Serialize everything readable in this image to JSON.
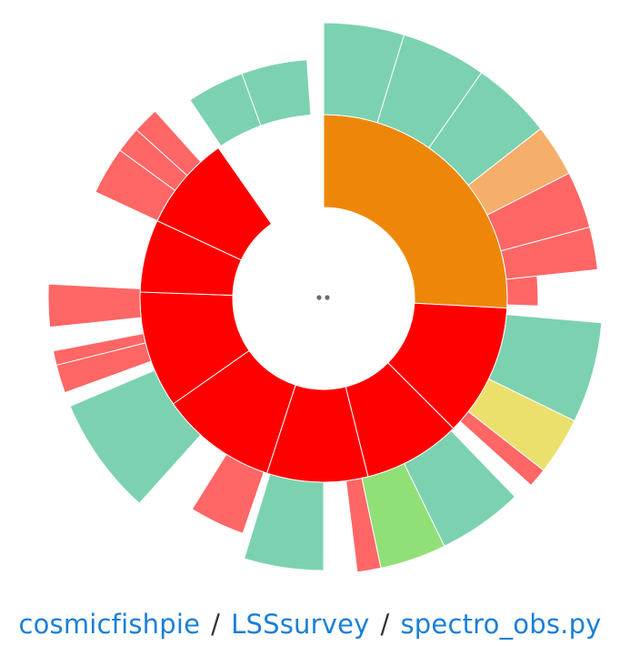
{
  "breadcrumb": {
    "items": [
      "cosmicfishpie",
      "LSSsurvey",
      "spectro_obs.py"
    ],
    "separator": "/"
  },
  "center_label": "..",
  "colors": {
    "dark_orange": "#ee8709",
    "red": "#ff0000",
    "light_red": "#ff6666",
    "green": "#7cd2b0",
    "light_orange": "#f6ae6b",
    "yellow": "#ece06c",
    "light_green": "#90e077"
  },
  "chart_data": {
    "type": "sunburst",
    "title": "",
    "rings": [
      {
        "level": 1,
        "segments": [
          {
            "start": 0,
            "end": 93,
            "color": "dark_orange"
          },
          {
            "start": 93,
            "end": 135,
            "color": "red"
          },
          {
            "start": 135,
            "end": 166,
            "color": "red"
          },
          {
            "start": 166,
            "end": 198,
            "color": "red"
          },
          {
            "start": 198,
            "end": 235,
            "color": "red"
          },
          {
            "start": 235,
            "end": 272,
            "color": "red"
          },
          {
            "start": 272,
            "end": 295,
            "color": "red"
          },
          {
            "start": 295,
            "end": 325,
            "color": "red"
          }
        ]
      },
      {
        "level": 2,
        "segments": [
          {
            "start": 73,
            "end": 82,
            "color": "light_red",
            "outer": 1.17
          },
          {
            "start": 82,
            "end": 92,
            "color": "light_red",
            "outer": 1.17
          },
          {
            "start": 95,
            "end": 116,
            "color": "green",
            "outer": 1.52
          },
          {
            "start": 116,
            "end": 128,
            "color": "yellow",
            "outer": 1.52
          },
          {
            "start": 128,
            "end": 132,
            "color": "light_red",
            "outer": 1.52
          },
          {
            "start": 136,
            "end": 154,
            "color": "green",
            "outer": 1.5
          },
          {
            "start": 154,
            "end": 168,
            "color": "light_green",
            "outer": 1.5
          },
          {
            "start": 168,
            "end": 173,
            "color": "light_red",
            "outer": 1.5
          },
          {
            "start": 180,
            "end": 197,
            "color": "green",
            "outer": 1.48
          },
          {
            "start": 199,
            "end": 212,
            "color": "light_red",
            "outer": 1.35
          },
          {
            "start": 222,
            "end": 247,
            "color": "green",
            "outer": 1.5
          },
          {
            "start": 250,
            "end": 256,
            "color": "light_red",
            "outer": 1.5
          },
          {
            "start": 256,
            "end": 259,
            "color": "light_red",
            "outer": 1.5
          },
          {
            "start": 264,
            "end": 273,
            "color": "light_red",
            "outer": 1.5
          },
          {
            "start": 295,
            "end": 306,
            "color": "light_red",
            "outer": 1.37
          },
          {
            "start": 306,
            "end": 312,
            "color": "light_red",
            "outer": 1.37
          },
          {
            "start": 312,
            "end": 318,
            "color": "light_red",
            "outer": 1.37
          },
          {
            "start": 326,
            "end": 340,
            "color": "green",
            "outer": 1.3
          },
          {
            "start": 340,
            "end": 356,
            "color": "green",
            "outer": 1.3
          }
        ]
      },
      {
        "level": 3,
        "segments": [
          {
            "start": 0,
            "end": 17,
            "color": "green",
            "outer": 1.5
          },
          {
            "start": 17,
            "end": 35,
            "color": "green",
            "outer": 1.5
          },
          {
            "start": 35,
            "end": 52,
            "color": "green",
            "outer": 1.5
          },
          {
            "start": 52,
            "end": 63,
            "color": "light_orange",
            "outer": 1.5
          },
          {
            "start": 63,
            "end": 75,
            "color": "light_red",
            "outer": 1.5
          },
          {
            "start": 75,
            "end": 84,
            "color": "light_red",
            "outer": 1.5
          }
        ]
      }
    ]
  }
}
